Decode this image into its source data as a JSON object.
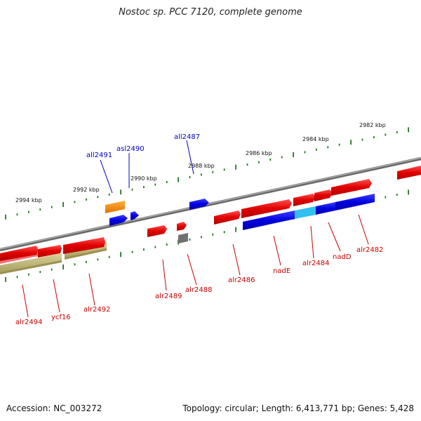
{
  "title": "Nostoc sp. PCC 7120, complete genome",
  "footer": {
    "accession": "Accession: NC_003272",
    "summary": "Topology: circular; Length: 6,413,771 bp; Genes: 5,428"
  },
  "scale_labels": [
    "2994 kbp",
    "2992 kbp",
    "2990 kbp",
    "2988 kbp",
    "2986 kbp",
    "2984 kbp",
    "2982 kbp"
  ],
  "genes_top": [
    "all2491",
    "asl2490",
    "all2487"
  ],
  "genes_bottom": [
    "alr2494",
    "ycf16",
    "alr2492",
    "alr2489",
    "alr2488",
    "alr2486",
    "nadE",
    "alr2484",
    "nadD",
    "alr2482"
  ],
  "colors": {
    "forward_gene": "#e00000",
    "reverse_gene": "#0000e0",
    "highlight_gene": "#30c0f0",
    "orange_gene": "#f08000",
    "olive_feature": "#b8b070",
    "gray_feature": "#707070",
    "genome_axis": "#8a8a8a",
    "tick": "#227722"
  }
}
